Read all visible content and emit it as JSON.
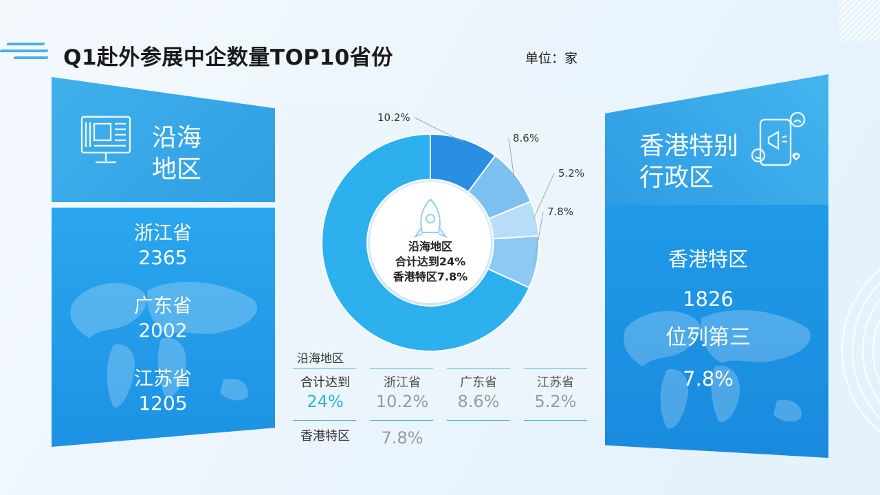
{
  "header": {
    "title": "Q1赴外参展中企数量TOP10省份",
    "unit": "单位：家"
  },
  "left": {
    "region_title_line1": "沿海",
    "region_title_line2": "地区",
    "provinces": [
      {
        "name": "浙江省",
        "value": "2365"
      },
      {
        "name": "广东省",
        "value": "2002"
      },
      {
        "name": "江苏省",
        "value": "1205"
      }
    ]
  },
  "right": {
    "region_title_line1": "香港特别",
    "region_title_line2": "行政区",
    "name": "香港特区",
    "value": "1826",
    "rank": "位列第三",
    "share": "7.8%"
  },
  "donut_center": {
    "line1": "沿海地区",
    "line2": "合计达到24%",
    "line3": "香港特区7.8%"
  },
  "chart_data": {
    "type": "pie",
    "slices": [
      {
        "label": "10.2%",
        "value": 10.2,
        "color": "#2a8ee2"
      },
      {
        "label": "8.6%",
        "value": 8.6,
        "color": "#7cc0f0"
      },
      {
        "label": "5.2%",
        "value": 5.2,
        "color": "#b7ddf8"
      },
      {
        "label": "7.8%",
        "value": 7.8,
        "color": "#8ccaf4"
      },
      {
        "label": "",
        "value": 68.2,
        "color": "#2db0ee"
      }
    ]
  },
  "table": {
    "header": "沿海地区",
    "total_label": "合计达到",
    "total_value": "24%",
    "cols": [
      {
        "name": "浙江省",
        "value": "10.2%"
      },
      {
        "name": "广东省",
        "value": "8.6%"
      },
      {
        "name": "江苏省",
        "value": "5.2%"
      }
    ],
    "hk_label": "香港特区",
    "hk_value": "7.8%"
  },
  "colors": {
    "accent": "#2a9fe6",
    "highlight": "#2bb4d8"
  }
}
